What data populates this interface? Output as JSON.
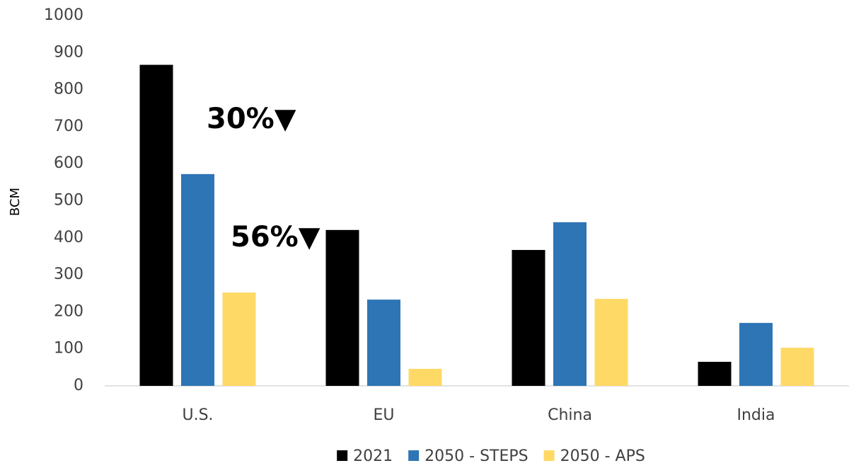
{
  "chart_data": {
    "type": "bar",
    "y_label": "BCM",
    "categories": [
      "U.S.",
      "EU",
      "China",
      "India"
    ],
    "series": [
      {
        "name": "2021",
        "color": "#000000",
        "values": [
          867,
          421,
          367,
          65
        ]
      },
      {
        "name": "2050 - STEPS",
        "color": "#2e75b6",
        "values": [
          572,
          233,
          442,
          170
        ]
      },
      {
        "name": "2050 - APS",
        "color": "#ffd966",
        "values": [
          252,
          46,
          235,
          103
        ]
      }
    ],
    "annotations": [
      "30%▼",
      "56%▼"
    ],
    "ylim": [
      0,
      1000
    ],
    "yticks": [
      0,
      100,
      200,
      300,
      400,
      500,
      600,
      700,
      800,
      900,
      1000
    ],
    "grid": false,
    "legend": "bottom"
  }
}
